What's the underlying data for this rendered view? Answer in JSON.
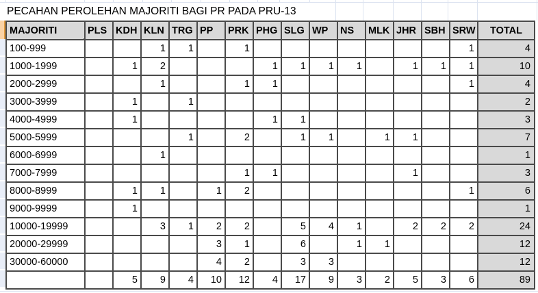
{
  "title": "PECAHAN PEROLEHAN MAJORITI BAGI PR PADA PRU-13",
  "table": {
    "header": [
      "MAJORITI",
      "PLS",
      "KDH",
      "KLN",
      "TRG",
      "PP",
      "PRK",
      "PHG",
      "SLG",
      "WP",
      "NS",
      "MLK",
      "JHR",
      "SBH",
      "SRW",
      "TOTAL"
    ],
    "rows": [
      {
        "label": "100-999",
        "cells": [
          "",
          "",
          "1",
          "1",
          "",
          "1",
          "",
          "",
          "",
          "",
          "",
          "",
          "",
          "1"
        ],
        "total": "4"
      },
      {
        "label": "1000-1999",
        "cells": [
          "",
          "1",
          "2",
          "",
          "",
          "",
          "1",
          "1",
          "1",
          "1",
          "",
          "1",
          "1",
          "1"
        ],
        "total": "10"
      },
      {
        "label": "2000-2999",
        "cells": [
          "",
          "",
          "1",
          "",
          "",
          "1",
          "1",
          "",
          "",
          "",
          "",
          "",
          "",
          "1"
        ],
        "total": "4"
      },
      {
        "label": "3000-3999",
        "cells": [
          "",
          "1",
          "",
          "1",
          "",
          "",
          "",
          "",
          "",
          "",
          "",
          "",
          "",
          ""
        ],
        "total": "2"
      },
      {
        "label": "4000-4999",
        "cells": [
          "",
          "1",
          "",
          "",
          "",
          "",
          "1",
          "1",
          "",
          "",
          "",
          "",
          "",
          ""
        ],
        "total": "3"
      },
      {
        "label": "5000-5999",
        "cells": [
          "",
          "",
          "",
          "1",
          "",
          "2",
          "",
          "1",
          "1",
          "",
          "1",
          "1",
          "",
          ""
        ],
        "total": "7"
      },
      {
        "label": "6000-6999",
        "cells": [
          "",
          "",
          "1",
          "",
          "",
          "",
          "",
          "",
          "",
          "",
          "",
          "",
          "",
          ""
        ],
        "total": "1"
      },
      {
        "label": "7000-7999",
        "cells": [
          "",
          "",
          "",
          "",
          "",
          "1",
          "1",
          "",
          "",
          "",
          "",
          "1",
          "",
          ""
        ],
        "total": "3"
      },
      {
        "label": "8000-8999",
        "cells": [
          "",
          "1",
          "1",
          "",
          "1",
          "2",
          "",
          "",
          "",
          "",
          "",
          "",
          "",
          "1"
        ],
        "total": "6"
      },
      {
        "label": "9000-9999",
        "cells": [
          "",
          "1",
          "",
          "",
          "",
          "",
          "",
          "",
          "",
          "",
          "",
          "",
          "",
          ""
        ],
        "total": "1"
      },
      {
        "label": "10000-19999",
        "cells": [
          "",
          "",
          "3",
          "1",
          "2",
          "2",
          "",
          "5",
          "4",
          "1",
          "",
          "2",
          "2",
          "2"
        ],
        "total": "24"
      },
      {
        "label": "20000-29999",
        "cells": [
          "",
          "",
          "",
          "",
          "3",
          "1",
          "",
          "6",
          "",
          "1",
          "1",
          "",
          "",
          ""
        ],
        "total": "12"
      },
      {
        "label": "30000-60000",
        "cells": [
          "",
          "",
          "",
          "",
          "4",
          "2",
          "",
          "3",
          "3",
          "",
          "",
          "",
          "",
          ""
        ],
        "total": "12"
      }
    ],
    "footer": {
      "label": "",
      "cells": [
        "",
        "5",
        "9",
        "4",
        "10",
        "12",
        "4",
        "17",
        "9",
        "3",
        "2",
        "5",
        "3",
        "6"
      ],
      "total": "89"
    }
  },
  "colors": {
    "header_fill": "#D9D9D9",
    "total_fill": "#D9D9D9",
    "table_border": "#4a4a4a",
    "gridline": "#dce3f0",
    "row_edge_selected": "#FBD3A4",
    "row_edge_body": "#E9EEF8"
  }
}
